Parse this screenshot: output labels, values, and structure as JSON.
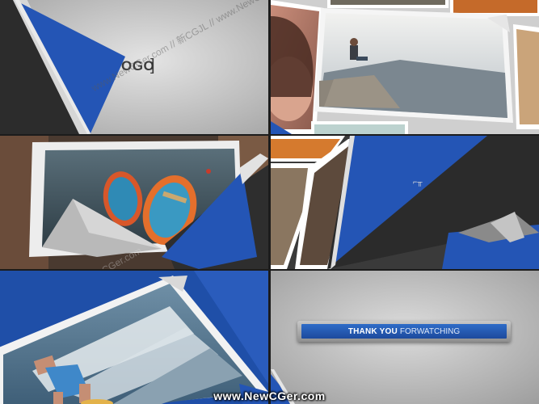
{
  "panel1": {
    "logo_text": "OGO",
    "logo_bracket": "]",
    "watermark": "www.NewCGer.com // 新CGJL // www.NewCGer.com"
  },
  "panel3": {
    "watermark": "新CGJL // www.NewCGer.com"
  },
  "panel6": {
    "thank_you": "THANK YOU",
    "for_watching": "FORWATCHING"
  },
  "footer": {
    "site": "www.NewCGer.com"
  },
  "colors": {
    "blue": "#2456b8",
    "dark": "#2e2e2e",
    "gray_bg": "#b8b8b8"
  }
}
